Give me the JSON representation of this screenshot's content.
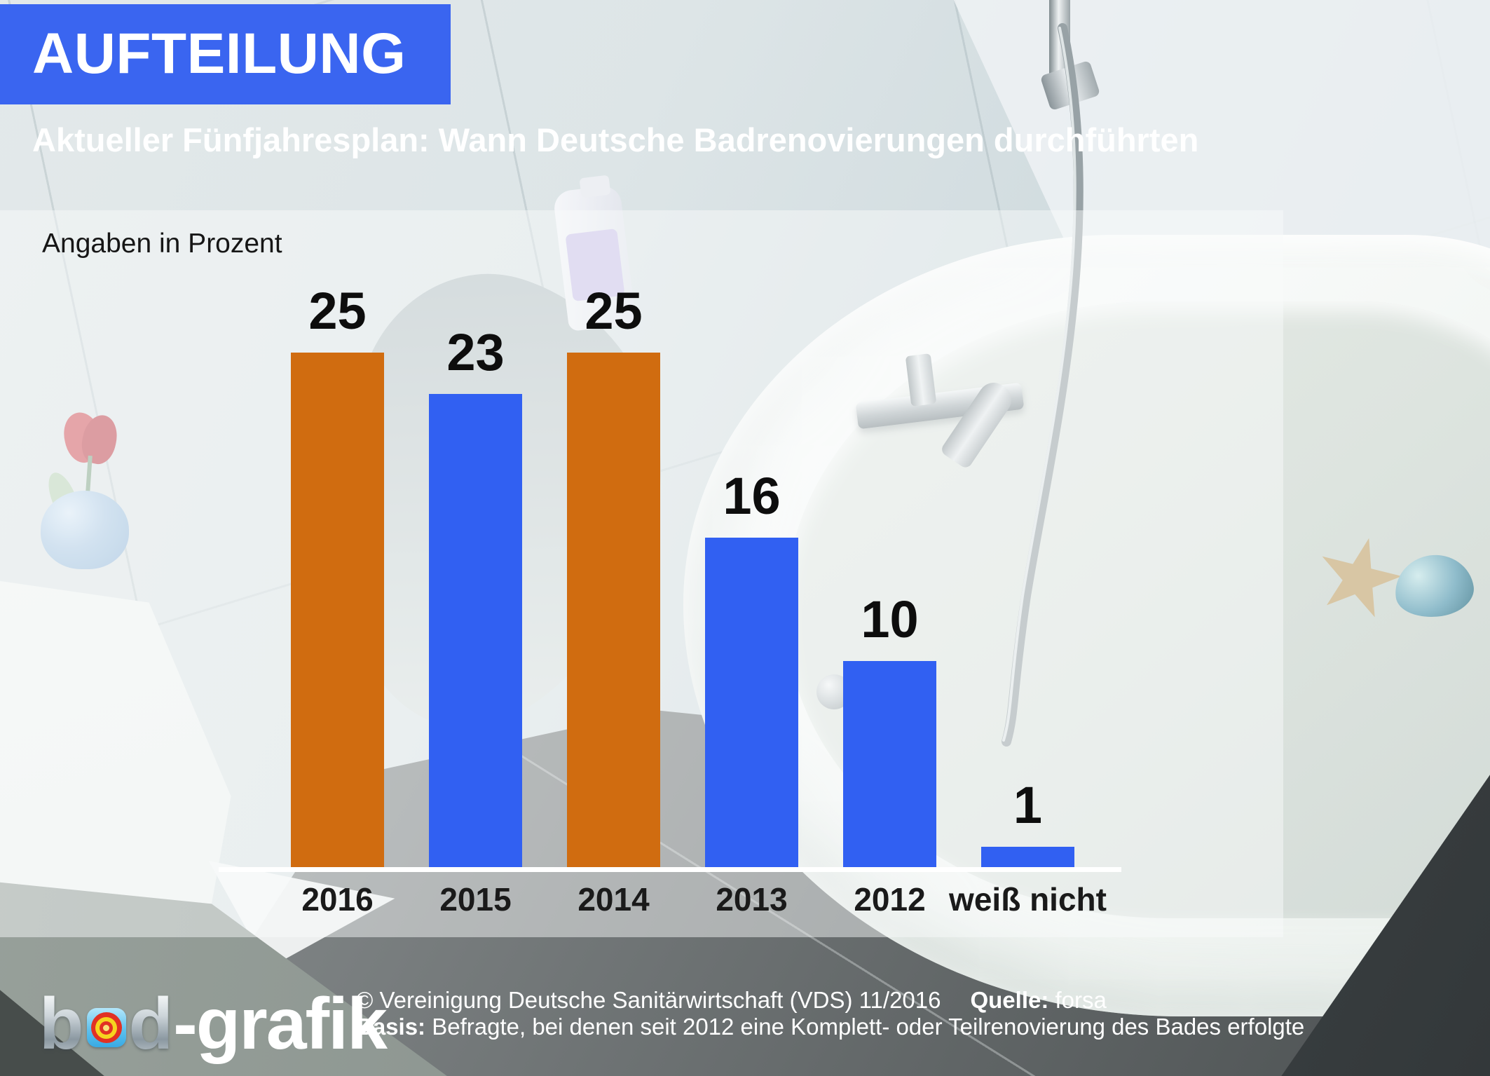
{
  "header": {
    "badge": "AUFTEILUNG",
    "subtitle": "Aktueller Fünfjahresplan: Wann Deutsche Badrenovierungen durchführten"
  },
  "chart": {
    "note": "Angaben in Prozent"
  },
  "chart_data": {
    "type": "bar",
    "title": "Aktueller Fünfjahresplan: Wann Deutsche Badrenovierungen durchführten",
    "unit": "Prozent",
    "categories": [
      "2016",
      "2015",
      "2014",
      "2013",
      "2012",
      "weiß nicht"
    ],
    "values": [
      25,
      23,
      25,
      16,
      10,
      1
    ],
    "bar_colors": [
      "orange",
      "blue",
      "orange",
      "blue",
      "blue",
      "blue"
    ],
    "value_labels_shown": true,
    "grid": false,
    "ylim": [
      0,
      25
    ],
    "xlabel": "",
    "ylabel": "Prozent"
  },
  "colors": {
    "orange": "#d06c10",
    "blue": "#3160f2",
    "header_blue": "#3a65f0",
    "axis_line": "#ffffff",
    "label_text": "#111111"
  },
  "footer": {
    "logo": {
      "b": "b",
      "d": "d",
      "rest": "-grafik",
      "full": "bad-grafik"
    },
    "copyright": "© Vereinigung Deutsche Sanitärwirtschaft (VDS)  11/2016",
    "source_label": "Quelle:",
    "source_value": "forsa",
    "basis_label": "Basis:",
    "basis_text": "Befragte, bei denen seit 2012 eine Komplett- oder Teilrenovierung des Bades erfolgte"
  }
}
